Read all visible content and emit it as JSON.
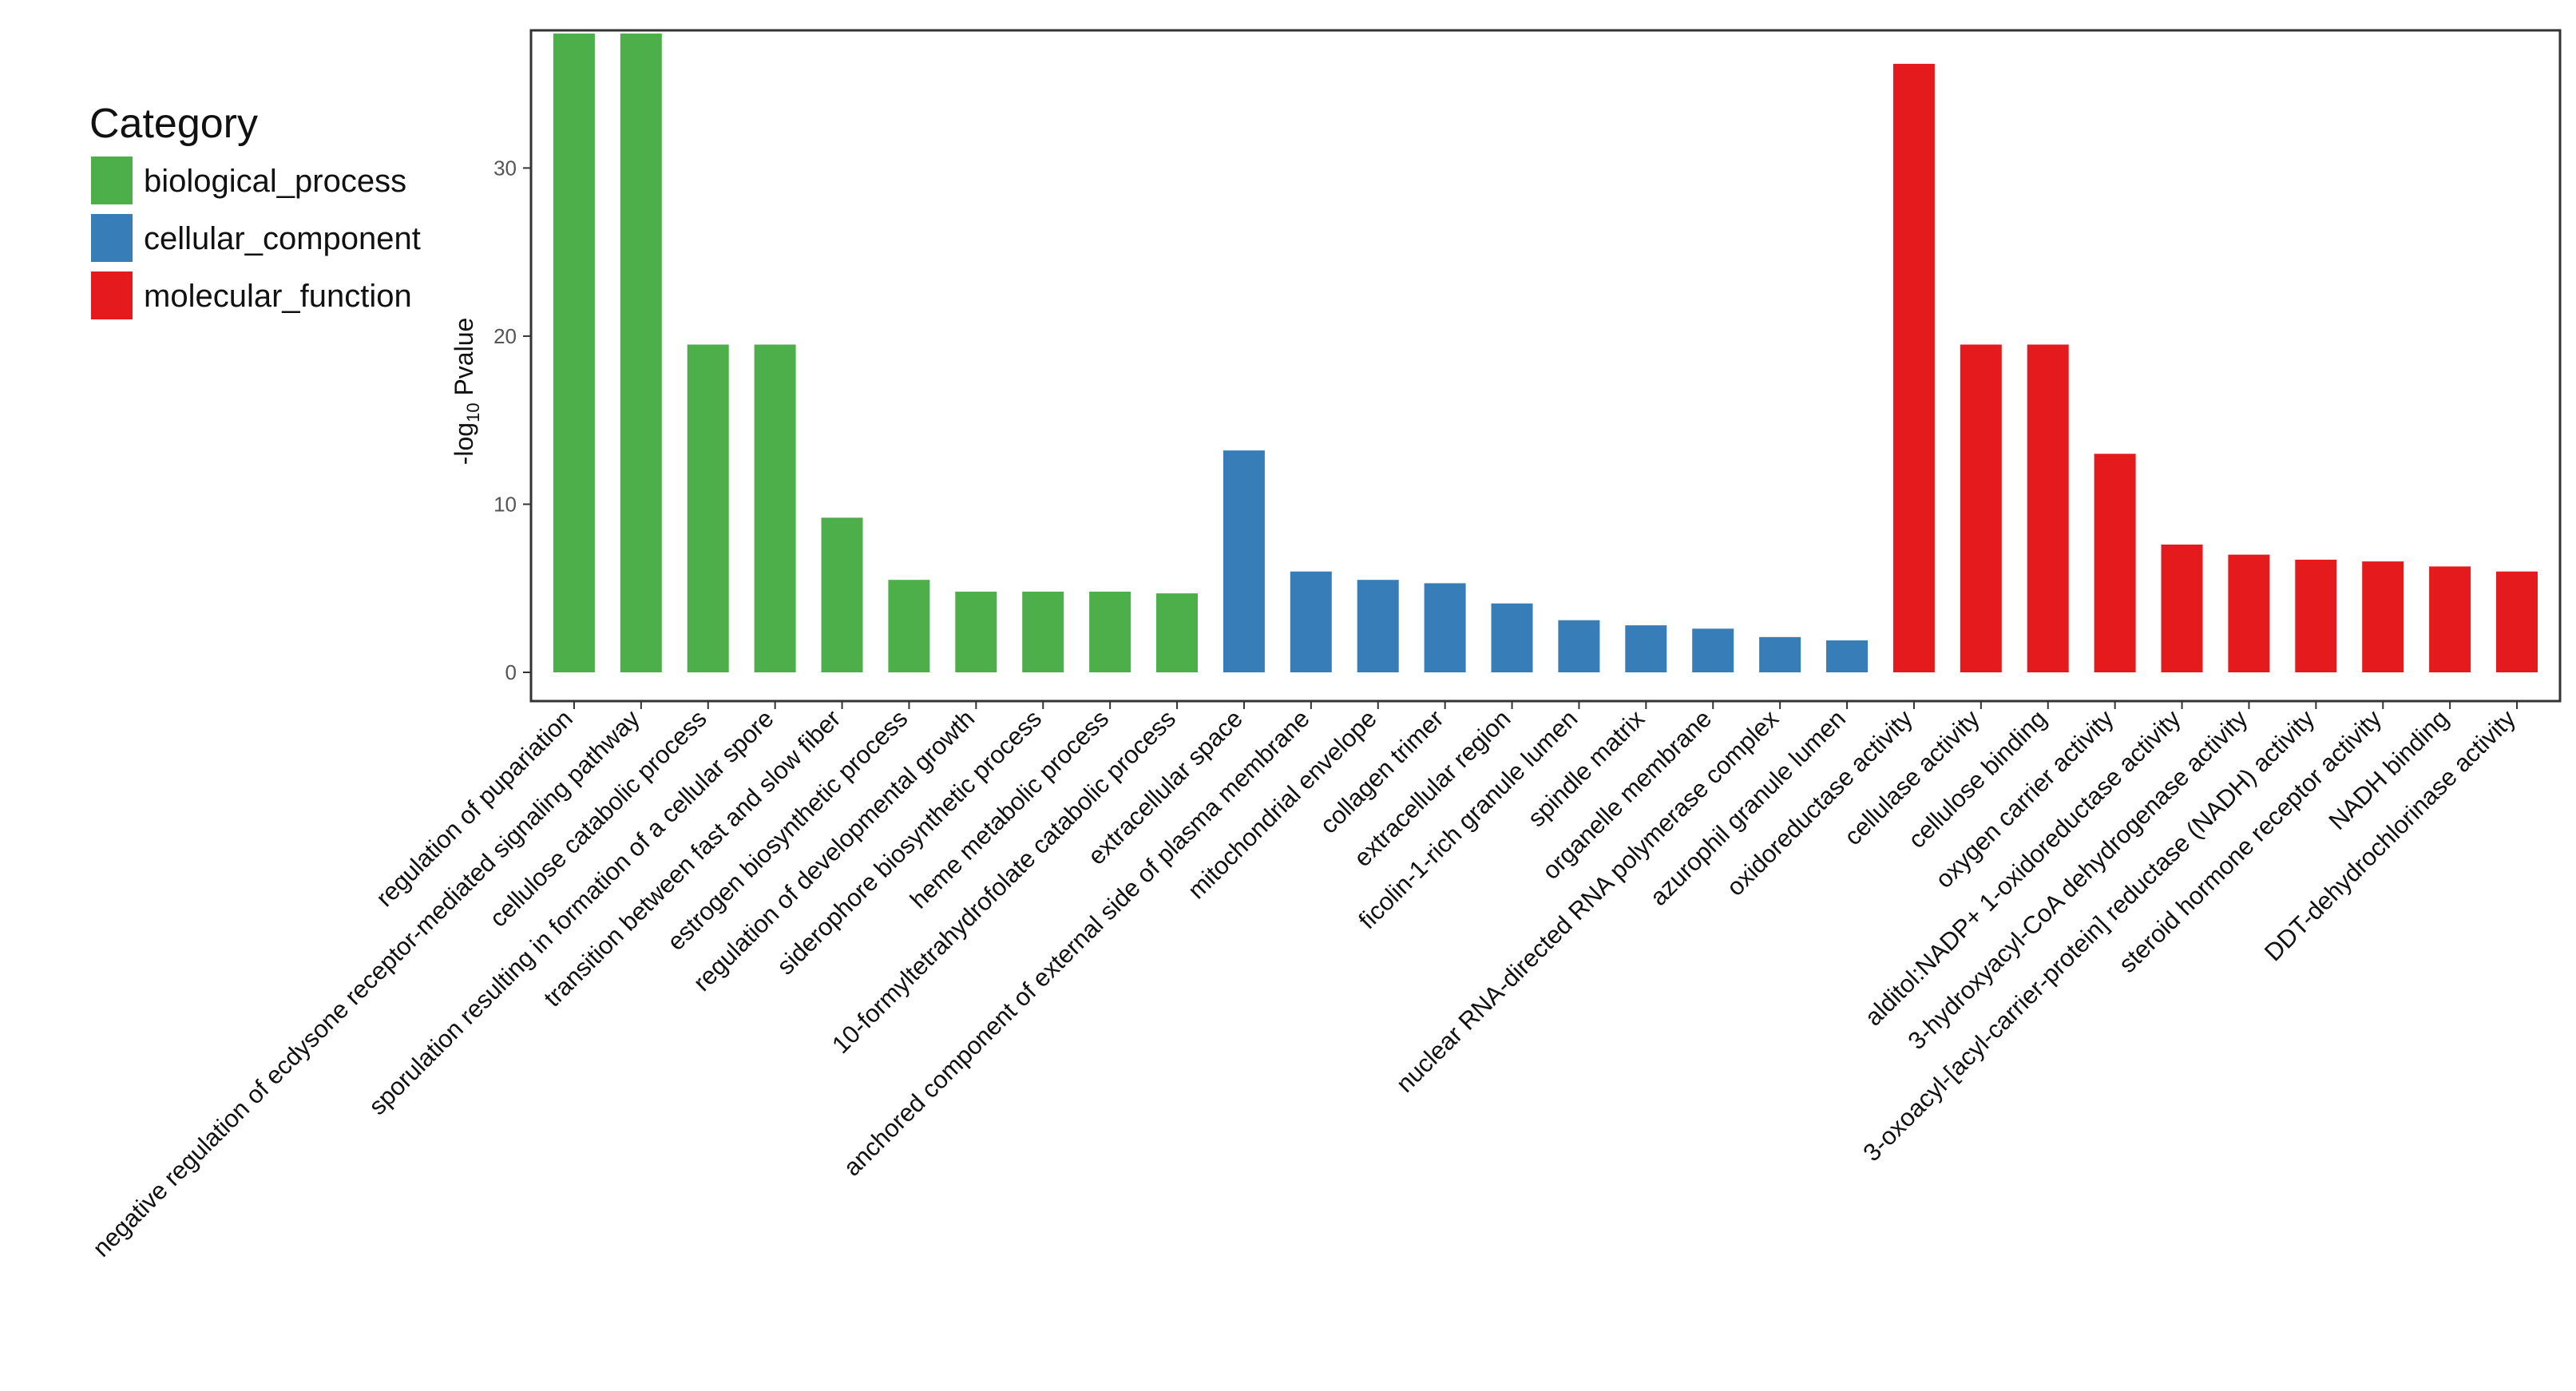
{
  "chart_data": {
    "type": "bar",
    "ylabel": {
      "prefix": "-log",
      "sub": "10",
      "suffix": " Pvalue"
    },
    "ylim": [
      0,
      38
    ],
    "yticks": [
      0,
      10,
      20,
      30
    ],
    "grid": false,
    "legend": {
      "title": "Category",
      "placement": "top-left",
      "entries": [
        {
          "name": "biological_process",
          "color": "#4daf4a"
        },
        {
          "name": "cellular_component",
          "color": "#377eb8"
        },
        {
          "name": "molecular_function",
          "color": "#e41a1c"
        }
      ]
    },
    "categories": [
      "regulation of pupariation",
      "negative regulation of ecdysone receptor-mediated signaling pathway",
      "cellulose catabolic process",
      "sporulation resulting in formation of a cellular spore",
      "transition between fast and slow fiber",
      "estrogen biosynthetic process",
      "regulation of developmental growth",
      "siderophore biosynthetic process",
      "heme metabolic process",
      "10-formyltetrahydrofolate catabolic process",
      "extracellular space",
      "anchored component of external side of plasma membrane",
      "mitochondrial envelope",
      "collagen trimer",
      "extracellular region",
      "ficolin-1-rich granule lumen",
      "spindle matrix",
      "organelle membrane",
      "nuclear RNA-directed RNA polymerase complex",
      "azurophil granule lumen",
      "oxidoreductase activity",
      "cellulase activity",
      "cellulose binding",
      "oxygen carrier activity",
      "alditol:NADP+ 1-oxidoreductase activity",
      "3-hydroxyacyl-CoA dehydrogenase activity",
      "3-oxoacyl-[acyl-carrier-protein] reductase (NADH) activity",
      "steroid hormone receptor activity",
      "NADH binding",
      "DDT-dehydrochlorinase activity"
    ],
    "values": [
      38,
      38,
      19.5,
      19.5,
      9.2,
      5.5,
      4.8,
      4.8,
      4.8,
      4.7,
      13.2,
      6.0,
      5.5,
      5.3,
      4.1,
      3.1,
      2.8,
      2.6,
      2.1,
      1.9,
      36.2,
      19.5,
      19.5,
      13.0,
      7.6,
      7.0,
      6.7,
      6.6,
      6.3,
      6.0
    ],
    "group": [
      "biological_process",
      "biological_process",
      "biological_process",
      "biological_process",
      "biological_process",
      "biological_process",
      "biological_process",
      "biological_process",
      "biological_process",
      "biological_process",
      "cellular_component",
      "cellular_component",
      "cellular_component",
      "cellular_component",
      "cellular_component",
      "cellular_component",
      "cellular_component",
      "cellular_component",
      "cellular_component",
      "cellular_component",
      "molecular_function",
      "molecular_function",
      "molecular_function",
      "molecular_function",
      "molecular_function",
      "molecular_function",
      "molecular_function",
      "molecular_function",
      "molecular_function",
      "molecular_function"
    ]
  }
}
